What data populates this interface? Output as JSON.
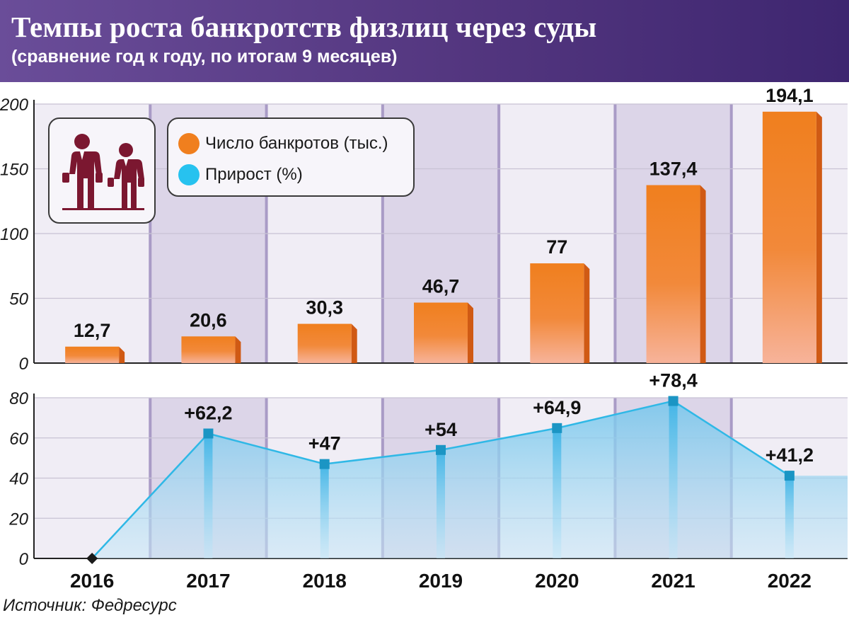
{
  "header": {
    "title": "Темпы роста банкротств физлиц через суды",
    "subtitle": "(сравнение год к году, по итогам 9 месяцев)"
  },
  "legend": {
    "items": [
      {
        "label": "Число банкротов (тыс.)",
        "color": "#f07f1e"
      },
      {
        "label": "Прирост (%)",
        "color": "#27c2ef"
      }
    ]
  },
  "icon": {
    "name": "bankrupt-people-icon",
    "color": "#7b1730"
  },
  "source": "Источник: Федресурс",
  "colors": {
    "bar_top": "#f07f1e",
    "bar_bottom": "#f7b39a",
    "bar_side": "#d05a14",
    "line": "#2fb8e6",
    "marker": "#1b95c4",
    "band_dark": "#dcd5e8",
    "band_light": "#f0edf5"
  },
  "chart_data": [
    {
      "type": "bar",
      "categories": [
        "2016",
        "2017",
        "2018",
        "2019",
        "2020",
        "2021",
        "2022"
      ],
      "series": [
        {
          "name": "Число банкротов (тыс.)",
          "values": [
            12.7,
            20.6,
            30.3,
            46.7,
            77,
            137.4,
            194.1
          ]
        }
      ],
      "value_labels": [
        "12,7",
        "20,6",
        "30,3",
        "46,7",
        "77",
        "137,4",
        "194,1"
      ],
      "yticks": [
        "0",
        "50",
        "100",
        "150",
        "200"
      ],
      "ylim": [
        0,
        200
      ],
      "grid": true
    },
    {
      "type": "area",
      "categories": [
        "2016",
        "2017",
        "2018",
        "2019",
        "2020",
        "2021",
        "2022"
      ],
      "series": [
        {
          "name": "Прирост (%)",
          "values": [
            0,
            62.2,
            47,
            54,
            64.9,
            78.4,
            41.2
          ]
        }
      ],
      "value_labels": [
        "",
        "+62,2",
        "+47",
        "+54",
        "+64,9",
        "+78,4",
        "+41,2"
      ],
      "yticks": [
        "0",
        "20",
        "40",
        "60",
        "80"
      ],
      "ylim": [
        0,
        80
      ],
      "grid": true
    }
  ]
}
